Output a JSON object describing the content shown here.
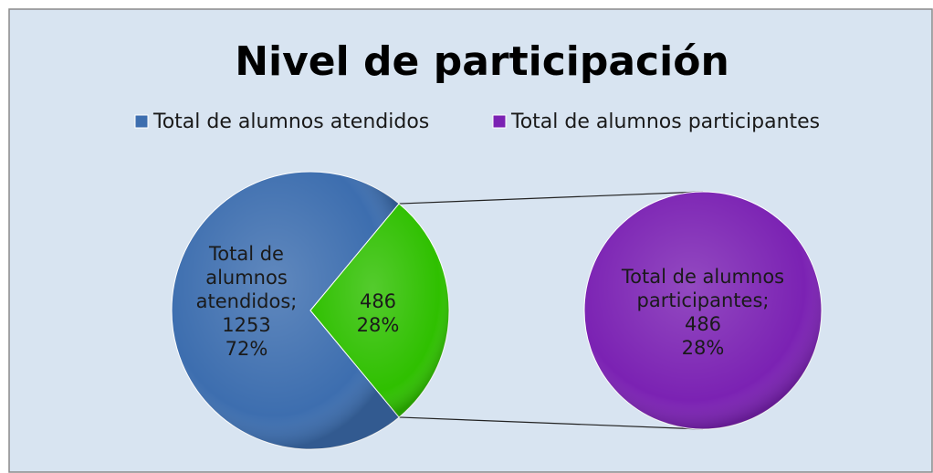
{
  "chart_data": {
    "type": "pie-of-pie",
    "title": "Nivel de participación",
    "categories": [
      "Total de alumnos atendidos",
      "Total de alumnos participantes"
    ],
    "values": [
      1253,
      486
    ],
    "percents": [
      72,
      28
    ],
    "percent_labels": [
      "72%",
      "28%"
    ],
    "label_separator": ";",
    "colors": [
      "#3d6eaf",
      "#7b22b3"
    ],
    "split_color": "#2fc000"
  }
}
